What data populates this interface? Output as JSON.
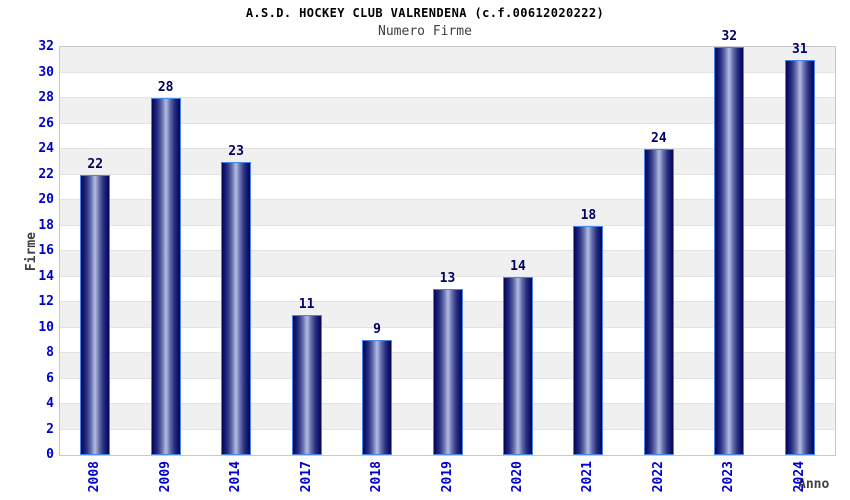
{
  "header": {
    "title": "A.S.D. HOCKEY CLUB VALRENDENA (c.f.00612020222)",
    "subtitle": "Numero Firme"
  },
  "chart_data": {
    "type": "bar",
    "title": "A.S.D. HOCKEY CLUB VALRENDENA (c.f.00612020222)",
    "subtitle": "Numero Firme",
    "xlabel": "Anno",
    "ylabel": "Firme",
    "categories": [
      "2008",
      "2009",
      "2014",
      "2017",
      "2018",
      "2019",
      "2020",
      "2021",
      "2022",
      "2023",
      "2024"
    ],
    "values": [
      22,
      28,
      23,
      11,
      9,
      13,
      14,
      18,
      24,
      32,
      31
    ],
    "ylim": [
      0,
      32
    ],
    "ytick_step": 2,
    "grid": "horizontal-bands-alternating",
    "legend": "none",
    "colors": {
      "tick_label": "#0000cc",
      "value_label": "#000066",
      "axis_title": "#404040",
      "title": "#000000",
      "subtitle": "#404040",
      "bar_border": "#4a86e8",
      "bar_gradient": [
        "#07074a",
        "#10106e",
        "#2a3080",
        "#6570ab",
        "#aab4dd"
      ],
      "band_alt": "#f0f0f0",
      "band_base": "#ffffff",
      "plot_border": "#c9c9c9",
      "gridline": "#e3e3e3"
    }
  }
}
